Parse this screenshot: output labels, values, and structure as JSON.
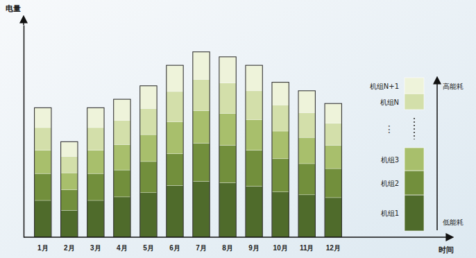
{
  "chart_data": {
    "type": "bar",
    "stacked": true,
    "tick_labels": "x",
    "x_label": "时间",
    "y_label": "电量",
    "categories": [
      "1月",
      "2月",
      "3月",
      "4月",
      "5月",
      "6月",
      "7月",
      "8月",
      "9月",
      "10月",
      "11月",
      "12月"
    ],
    "ylim": [
      0,
      300
    ],
    "legend": "right",
    "legend_ellipsis": "⋮",
    "energy_high": "高能耗",
    "energy_low": "低能耗",
    "series": [
      {
        "name": "机组1",
        "color": "#4f6b2b",
        "values": [
          52,
          38,
          52,
          57,
          63,
          73,
          79,
          77,
          72,
          64,
          60,
          56
        ]
      },
      {
        "name": "机组2",
        "color": "#728f3c",
        "values": [
          38,
          29,
          38,
          38,
          44,
          45,
          54,
          53,
          51,
          47,
          44,
          41
        ]
      },
      {
        "name": "机组3",
        "color": "#a8bf6c",
        "values": [
          33,
          24,
          33,
          36,
          38,
          45,
          46,
          45,
          43,
          39,
          37,
          33
        ]
      },
      {
        "name": "机组N",
        "color": "#d3dfaa",
        "values": [
          32,
          23,
          32,
          34,
          37,
          43,
          44,
          43,
          41,
          37,
          35,
          31
        ]
      },
      {
        "name": "机组N+1",
        "color": "#eef3da",
        "values": [
          28,
          21,
          28,
          30,
          32,
          37,
          39,
          37,
          36,
          32,
          31,
          28
        ]
      }
    ]
  }
}
